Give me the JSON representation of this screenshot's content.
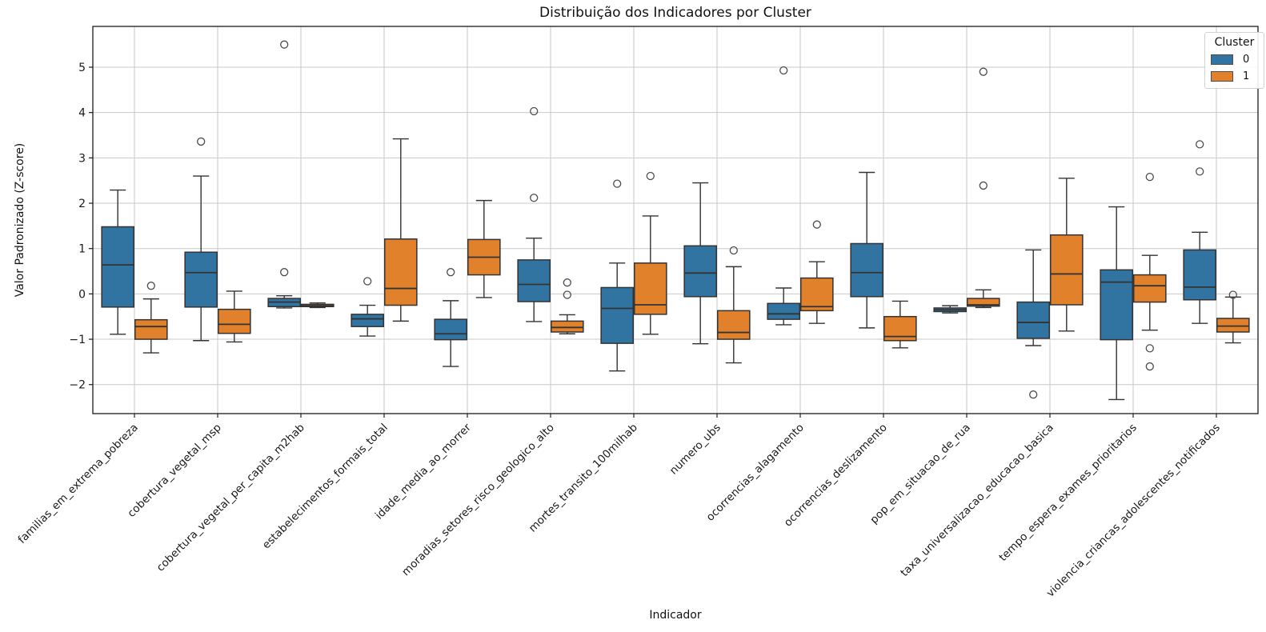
{
  "chart_data": {
    "type": "boxplot",
    "title": "Distribuição dos Indicadores por Cluster",
    "xlabel": "Indicador",
    "ylabel": "Valor Padronizado (Z-score)",
    "ylim": [
      -2.64,
      5.9
    ],
    "yticks": [
      -2,
      -1,
      0,
      1,
      2,
      3,
      4,
      5
    ],
    "grid": true,
    "grid_color": "#c9c9c9",
    "edge_color": "#333333",
    "flier_color": "#4d4d4d",
    "legend": {
      "title": "Cluster",
      "position": "upper right",
      "entries": [
        {
          "label": "0",
          "color": "#3274a1"
        },
        {
          "label": "1",
          "color": "#e1812c"
        }
      ]
    },
    "categories": [
      "familias_em_extrema_pobreza",
      "cobertura_vegetal_msp",
      "cobertura_vegetal_per_capita_m2hab",
      "estabelecimentos_formais_total",
      "idade_media_ao_morrer",
      "moradias_setores_risco_geologico_alto",
      "mortes_transito_100milhab",
      "numero_ubs",
      "ocorrencias_alagamento",
      "ocorrencias_deslizamento",
      "pop_em_situacao_de_rua",
      "taxa_universalizacao_educacao_basica",
      "tempo_espera_exames_prioritarios",
      "violencia_criancas_adolescentes_notificados"
    ],
    "series": [
      {
        "name": "0",
        "color": "#3274a1",
        "boxes": [
          {
            "whislo": -0.89,
            "q1": -0.29,
            "med": 0.64,
            "q3": 1.48,
            "whishi": 2.29,
            "fliers": []
          },
          {
            "whislo": -1.03,
            "q1": -0.29,
            "med": 0.47,
            "q3": 0.92,
            "whishi": 2.6,
            "fliers": [
              3.36
            ]
          },
          {
            "whislo": -0.31,
            "q1": -0.28,
            "med": -0.18,
            "q3": -0.1,
            "whishi": -0.04,
            "fliers": [
              5.5,
              0.48
            ]
          },
          {
            "whislo": -0.93,
            "q1": -0.72,
            "med": -0.55,
            "q3": -0.45,
            "whishi": -0.25,
            "fliers": [
              0.28
            ]
          },
          {
            "whislo": -1.6,
            "q1": -1.01,
            "med": -0.88,
            "q3": -0.56,
            "whishi": -0.15,
            "fliers": [
              0.48
            ]
          },
          {
            "whislo": -0.61,
            "q1": -0.17,
            "med": 0.21,
            "q3": 0.75,
            "whishi": 1.23,
            "fliers": [
              4.03,
              2.12
            ]
          },
          {
            "whislo": -1.7,
            "q1": -1.09,
            "med": -0.32,
            "q3": 0.14,
            "whishi": 0.68,
            "fliers": [
              2.43
            ]
          },
          {
            "whislo": -1.1,
            "q1": -0.06,
            "med": 0.46,
            "q3": 1.06,
            "whishi": 2.45,
            "fliers": []
          },
          {
            "whislo": -0.68,
            "q1": -0.56,
            "med": -0.44,
            "q3": -0.21,
            "whishi": 0.13,
            "fliers": [
              4.93
            ]
          },
          {
            "whislo": -0.75,
            "q1": -0.06,
            "med": 0.47,
            "q3": 1.11,
            "whishi": 2.68,
            "fliers": []
          },
          {
            "whislo": -0.42,
            "q1": -0.39,
            "med": -0.35,
            "q3": -0.31,
            "whishi": -0.26,
            "fliers": []
          },
          {
            "whislo": -1.14,
            "q1": -0.98,
            "med": -0.63,
            "q3": -0.18,
            "whishi": 0.97,
            "fliers": [
              -2.22
            ]
          },
          {
            "whislo": -2.33,
            "q1": -1.01,
            "med": 0.26,
            "q3": 0.53,
            "whishi": 1.92,
            "fliers": []
          },
          {
            "whislo": -0.65,
            "q1": -0.13,
            "med": 0.15,
            "q3": 0.97,
            "whishi": 1.36,
            "fliers": [
              3.3,
              2.7
            ]
          }
        ]
      },
      {
        "name": "1",
        "color": "#e1812c",
        "boxes": [
          {
            "whislo": -1.3,
            "q1": -1.0,
            "med": -0.72,
            "q3": -0.57,
            "whishi": -0.11,
            "fliers": [
              0.18
            ]
          },
          {
            "whislo": -1.06,
            "q1": -0.87,
            "med": -0.67,
            "q3": -0.34,
            "whishi": 0.06,
            "fliers": []
          },
          {
            "whislo": -0.3,
            "q1": -0.28,
            "med": -0.26,
            "q3": -0.23,
            "whishi": -0.2,
            "fliers": []
          },
          {
            "whislo": -0.6,
            "q1": -0.25,
            "med": 0.12,
            "q3": 1.21,
            "whishi": 3.42,
            "fliers": []
          },
          {
            "whislo": -0.08,
            "q1": 0.42,
            "med": 0.81,
            "q3": 1.2,
            "whishi": 2.06,
            "fliers": []
          },
          {
            "whislo": -0.88,
            "q1": -0.84,
            "med": -0.74,
            "q3": -0.6,
            "whishi": -0.46,
            "fliers": [
              0.25,
              -0.02
            ]
          },
          {
            "whislo": -0.89,
            "q1": -0.45,
            "med": -0.24,
            "q3": 0.68,
            "whishi": 1.72,
            "fliers": [
              2.6
            ]
          },
          {
            "whislo": -1.52,
            "q1": -1.0,
            "med": -0.85,
            "q3": -0.37,
            "whishi": 0.6,
            "fliers": [
              0.96
            ]
          },
          {
            "whislo": -0.65,
            "q1": -0.37,
            "med": -0.28,
            "q3": 0.35,
            "whishi": 0.71,
            "fliers": [
              1.53
            ]
          },
          {
            "whislo": -1.19,
            "q1": -1.03,
            "med": -0.94,
            "q3": -0.5,
            "whishi": -0.16,
            "fliers": []
          },
          {
            "whislo": -0.3,
            "q1": -0.27,
            "med": -0.24,
            "q3": -0.1,
            "whishi": 0.09,
            "fliers": [
              4.9,
              2.39
            ]
          },
          {
            "whislo": -0.82,
            "q1": -0.24,
            "med": 0.44,
            "q3": 1.3,
            "whishi": 2.55,
            "fliers": []
          },
          {
            "whislo": -0.8,
            "q1": -0.18,
            "med": 0.18,
            "q3": 0.42,
            "whishi": 0.85,
            "fliers": [
              2.58,
              -1.2,
              -1.6
            ]
          },
          {
            "whislo": -1.08,
            "q1": -0.84,
            "med": -0.71,
            "q3": -0.54,
            "whishi": -0.07,
            "fliers": [
              -0.02
            ]
          }
        ]
      }
    ]
  }
}
